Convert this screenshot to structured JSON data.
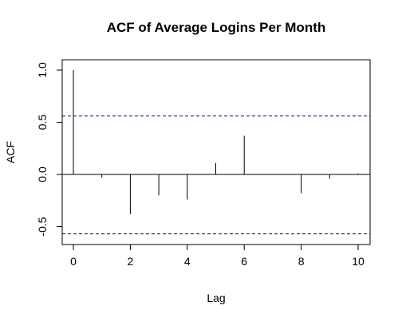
{
  "chart_data": {
    "type": "bar",
    "title": "ACF of Average Logins Per Month",
    "xlabel": "Lag",
    "ylabel": "ACF",
    "x": [
      0,
      1,
      2,
      3,
      4,
      5,
      6,
      7,
      8,
      9,
      10
    ],
    "values": [
      1.0,
      -0.03,
      -0.38,
      -0.2,
      -0.24,
      0.11,
      0.37,
      0.0,
      -0.18,
      -0.04,
      0.01
    ],
    "xlim": [
      0,
      10
    ],
    "ylim": [
      -0.6,
      1.0
    ],
    "xticks": [
      0,
      2,
      4,
      6,
      8,
      10
    ],
    "yticks": [
      -0.5,
      0.0,
      0.5,
      1.0
    ],
    "confidence_bounds": [
      0.56,
      -0.57
    ],
    "zero_line": true,
    "grid": false,
    "colors": {
      "bars": "#000000",
      "confidence": "#00008b",
      "axes": "#000000"
    }
  }
}
